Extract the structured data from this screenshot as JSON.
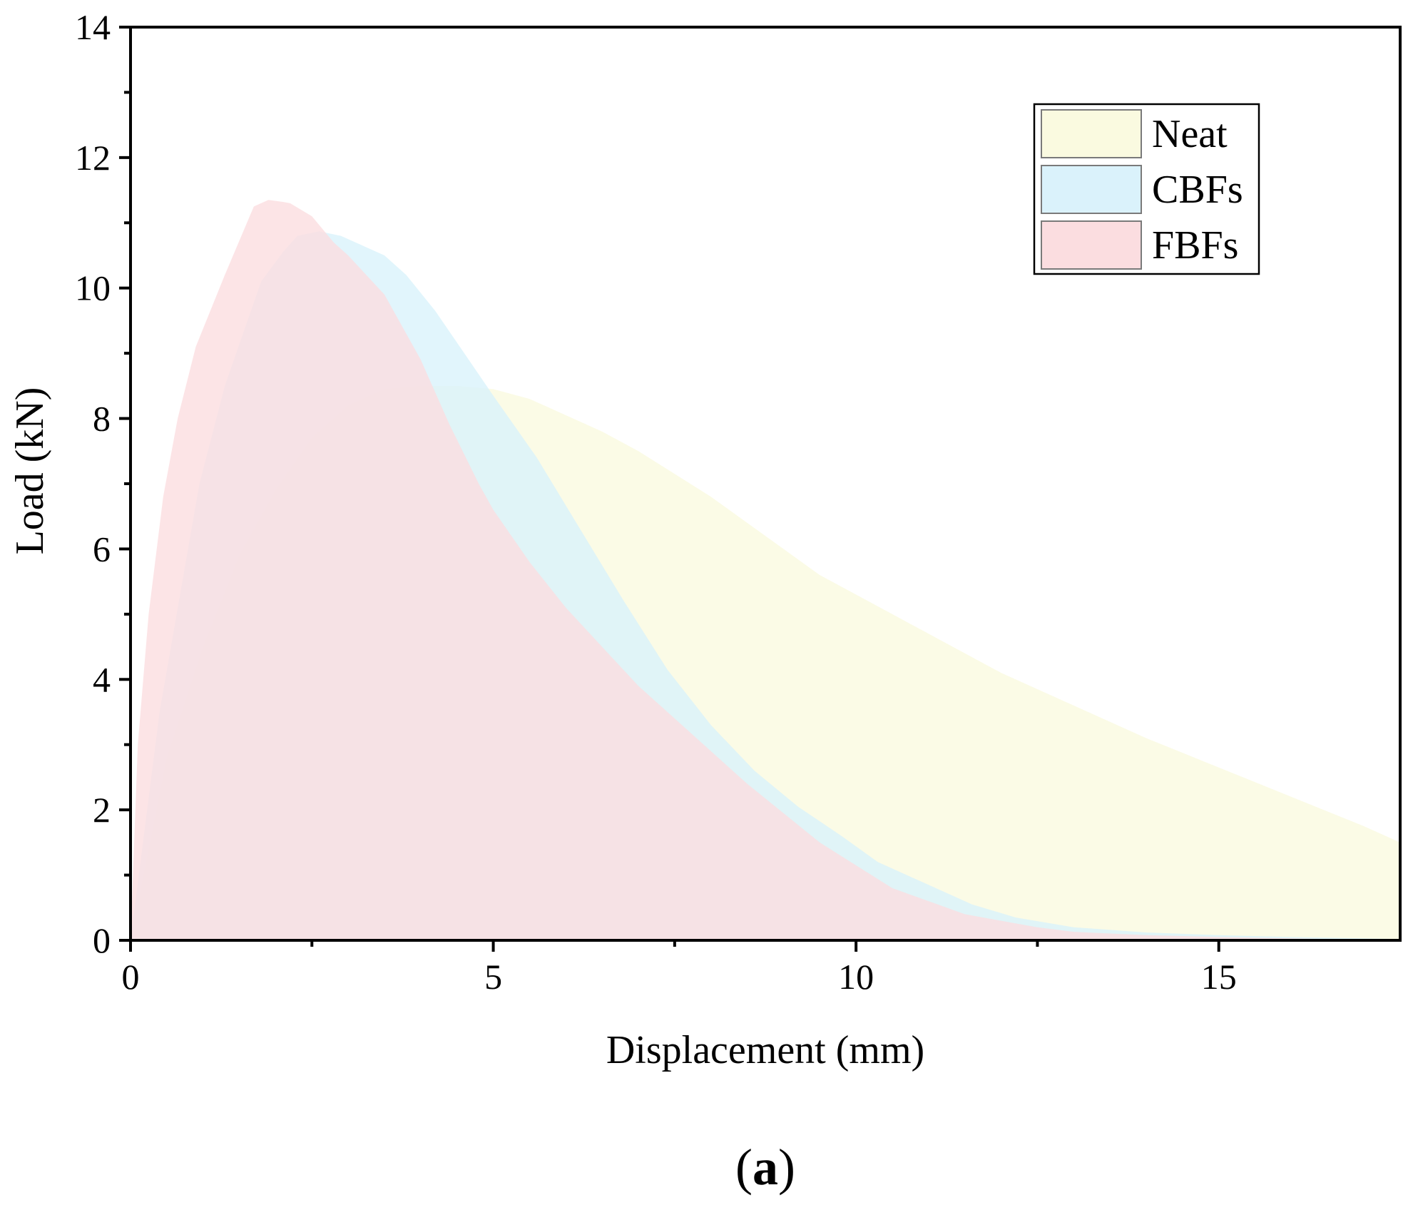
{
  "panel_label": {
    "open": "(",
    "letter": "a",
    "close": ")"
  },
  "chart_data": {
    "type": "area",
    "xlabel": "Displacement (mm)",
    "ylabel": "Load (kN)",
    "xlim": [
      0,
      17.5
    ],
    "ylim": [
      0,
      14
    ],
    "x_ticks": [
      0,
      5,
      10,
      15
    ],
    "y_ticks": [
      0,
      2,
      4,
      6,
      8,
      10,
      12,
      14
    ],
    "grid": false,
    "legend_position": "top-right",
    "series": [
      {
        "name": "Neat",
        "color": "#fafae0",
        "x": [
          0,
          0.5,
          1.0,
          1.5,
          2.0,
          2.5,
          3.0,
          3.5,
          4.0,
          4.5,
          5.0,
          5.5,
          6.0,
          6.5,
          7.0,
          7.5,
          8.0,
          8.5,
          9.0,
          9.5,
          10.0,
          11.0,
          12.0,
          13.0,
          14.0,
          15.0,
          16.0,
          17.0,
          17.5
        ],
        "y": [
          0,
          2.8,
          4.5,
          5.9,
          6.9,
          7.7,
          8.2,
          8.45,
          8.5,
          8.5,
          8.45,
          8.3,
          8.05,
          7.8,
          7.5,
          7.15,
          6.8,
          6.4,
          6.0,
          5.6,
          5.3,
          4.7,
          4.1,
          3.6,
          3.1,
          2.65,
          2.2,
          1.75,
          1.5
        ]
      },
      {
        "name": "CBFs",
        "color": "#daf2fb",
        "x": [
          0,
          0.4,
          0.95,
          1.3,
          1.8,
          2.1,
          2.3,
          2.6,
          2.9,
          3.5,
          3.8,
          4.2,
          4.6,
          5.0,
          5.6,
          6.2,
          6.8,
          7.4,
          8.0,
          8.6,
          9.2,
          9.8,
          10.3,
          11.0,
          11.6,
          12.2,
          13.0,
          14.0,
          15.0,
          16.0,
          17.0,
          17.5
        ],
        "y": [
          0,
          3.5,
          7.0,
          8.5,
          10.1,
          10.55,
          10.8,
          10.87,
          10.8,
          10.5,
          10.2,
          9.65,
          9.0,
          8.35,
          7.4,
          6.3,
          5.2,
          4.15,
          3.3,
          2.6,
          2.05,
          1.6,
          1.2,
          0.85,
          0.55,
          0.35,
          0.2,
          0.12,
          0.08,
          0.05,
          0.03,
          0.02
        ]
      },
      {
        "name": "FBFs",
        "color": "#fbdde0",
        "x": [
          0,
          0.1,
          0.25,
          0.45,
          0.65,
          0.9,
          1.3,
          1.7,
          1.9,
          2.1,
          2.2,
          2.5,
          2.8,
          3.0,
          3.5,
          4.0,
          4.4,
          4.8,
          5.0,
          5.5,
          6.0,
          6.5,
          7.0,
          7.5,
          8.0,
          8.5,
          9.0,
          9.5,
          10.0,
          10.5,
          11.0,
          11.5,
          12.0,
          12.5,
          13.0,
          14.0,
          15.0,
          16.0,
          17.0,
          17.5
        ],
        "y": [
          0,
          3.0,
          5.0,
          6.8,
          8.0,
          9.1,
          10.2,
          11.25,
          11.35,
          11.32,
          11.3,
          11.1,
          10.7,
          10.5,
          9.9,
          8.9,
          7.9,
          7.0,
          6.6,
          5.8,
          5.1,
          4.5,
          3.9,
          3.4,
          2.9,
          2.4,
          1.95,
          1.5,
          1.15,
          0.8,
          0.6,
          0.4,
          0.3,
          0.2,
          0.13,
          0.08,
          0.05,
          0.03,
          0.01,
          0.0
        ]
      }
    ]
  }
}
